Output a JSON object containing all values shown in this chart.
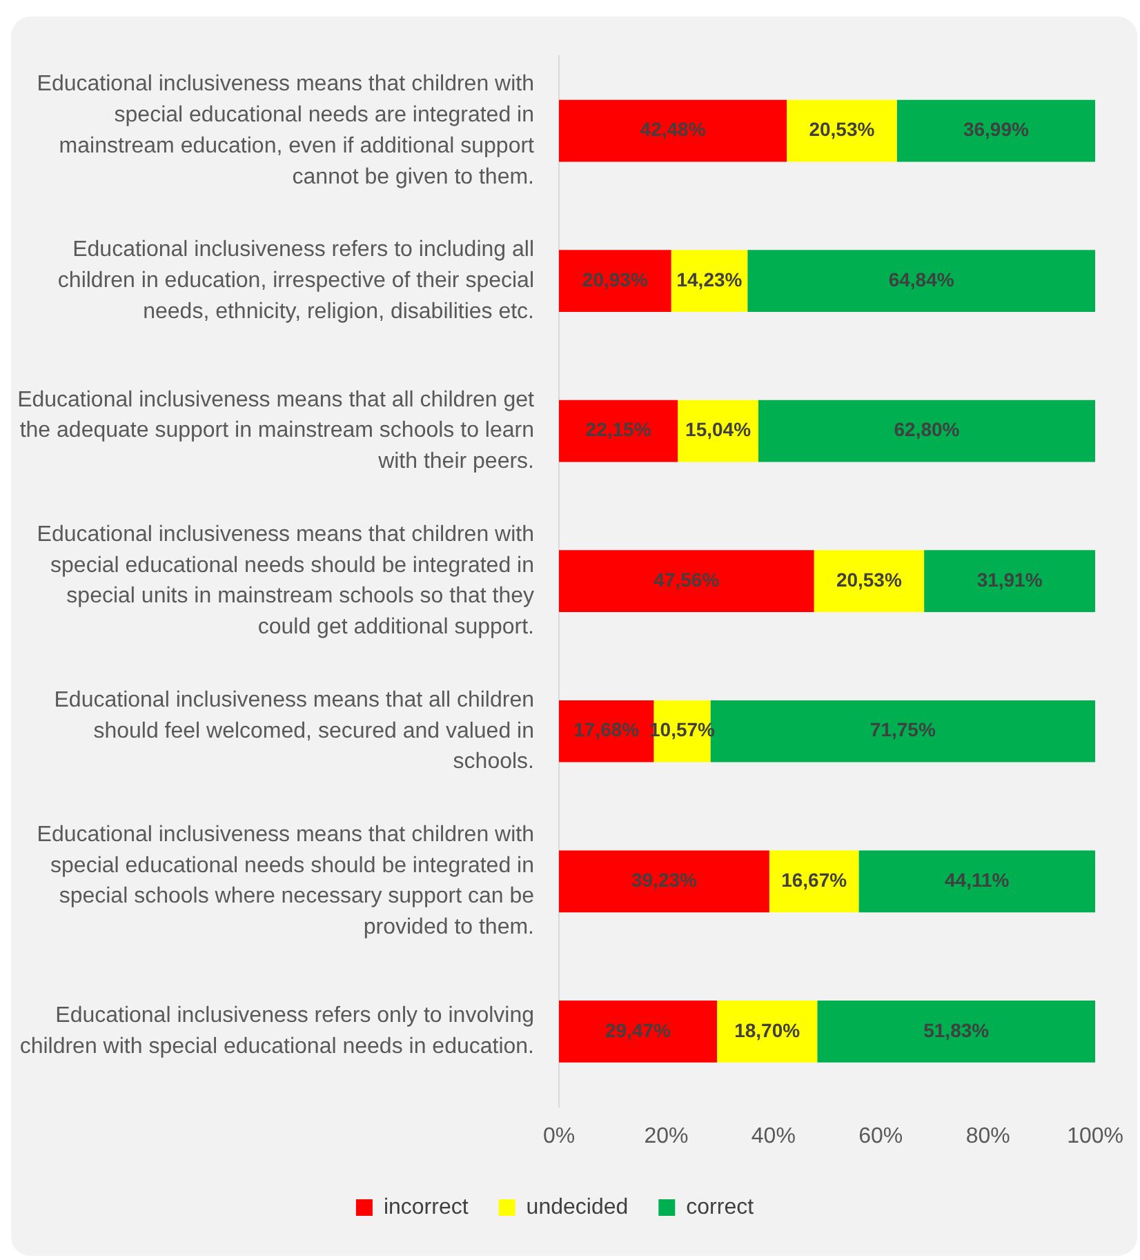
{
  "chart_data": {
    "type": "bar",
    "orientation": "horizontal",
    "stacked": true,
    "categories": [
      "Educational inclusiveness means that children with special educational needs are integrated in mainstream education, even if additional support cannot be given to them.",
      "Educational inclusiveness refers to including all children in education, irrespective of their special needs, ethnicity, religion, disabilities etc.",
      "Educational inclusiveness means that all children get the adequate support in mainstream schools to learn with their peers.",
      "Educational inclusiveness means that children with special educational needs should be integrated in special units in mainstream schools so that they could get additional support.",
      "Educational inclusiveness means that all children should feel welcomed, secured and valued in schools.",
      "Educational inclusiveness means that children with special educational needs should be integrated in special schools where necessary support can be provided to them.",
      "Educational inclusiveness refers only to involving children with special educational needs in education."
    ],
    "series": [
      {
        "name": "incorrect",
        "color": "#ff0000",
        "values": [
          42.48,
          20.93,
          22.15,
          47.56,
          17.68,
          39.23,
          29.47
        ],
        "value_labels": [
          "42,48%",
          "20,93%",
          "22,15%",
          "47,56%",
          "17,68%",
          "39,23%",
          "29,47%"
        ]
      },
      {
        "name": "undecided",
        "color": "#ffff00",
        "values": [
          20.53,
          14.23,
          15.04,
          20.53,
          10.57,
          16.67,
          18.7
        ],
        "value_labels": [
          "20,53%",
          "14,23%",
          "15,04%",
          "20,53%",
          "10,57%",
          "16,67%",
          "18,70%"
        ]
      },
      {
        "name": "correct",
        "color": "#00b050",
        "values": [
          36.99,
          64.84,
          62.8,
          31.91,
          71.75,
          44.11,
          51.83
        ],
        "value_labels": [
          "36,99%",
          "64,84%",
          "62,80%",
          "31,91%",
          "71,75%",
          "44,11%",
          "51,83%"
        ]
      }
    ],
    "xlim": [
      0,
      100
    ],
    "xticks": [
      {
        "value": 0,
        "label": "0%"
      },
      {
        "value": 20,
        "label": "20%"
      },
      {
        "value": 40,
        "label": "40%"
      },
      {
        "value": 60,
        "label": "60%"
      },
      {
        "value": 80,
        "label": "80%"
      },
      {
        "value": 100,
        "label": "100%"
      }
    ],
    "grid": false,
    "legend": "bottom"
  }
}
